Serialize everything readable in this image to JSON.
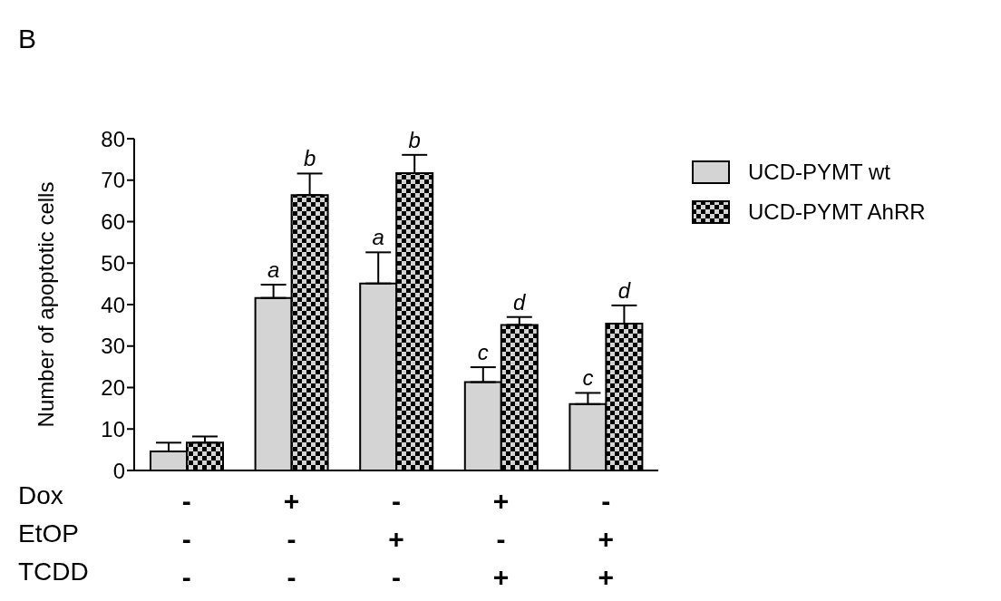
{
  "chart_data": {
    "type": "bar",
    "title": "B",
    "ylabel": "Number of apoptotic cells",
    "categories": [
      "-\n-\n-",
      "+\n-\n-",
      "-\n+\n-",
      "+\n-\n+",
      "-\n+\n+"
    ],
    "annotations": [
      "Dox",
      "EtOP",
      "TCDD"
    ],
    "series": [
      {
        "name": "UCD-PYMT wt",
        "color": "#d4d4d4",
        "values": [
          4.6,
          41.6,
          45.1,
          21.3,
          16.0
        ],
        "errors": [
          [
            4.6,
            6.7
          ],
          [
            41.6,
            44.8
          ],
          [
            45.1,
            52.6
          ],
          [
            21.3,
            24.9
          ],
          [
            16.0,
            18.7
          ]
        ],
        "value_labels": [
          null,
          "a",
          "a",
          "c",
          "c"
        ]
      },
      {
        "name": "UCD-PYMT AhRR",
        "color": "#000000",
        "values": [
          6.7,
          66.4,
          71.7,
          35.1,
          35.4
        ],
        "errors": [
          [
            6.7,
            8.2
          ],
          [
            66.4,
            71.6
          ],
          [
            71.7,
            76.1
          ],
          [
            35.1,
            37.0
          ],
          [
            35.4,
            39.8
          ]
        ],
        "value_labels": [
          null,
          "b",
          "b",
          "d",
          "d"
        ]
      }
    ],
    "ylim": [
      0,
      80
    ],
    "yticks": [
      0,
      10,
      20,
      30,
      40,
      50,
      60,
      70,
      80
    ],
    "legend": "right"
  }
}
